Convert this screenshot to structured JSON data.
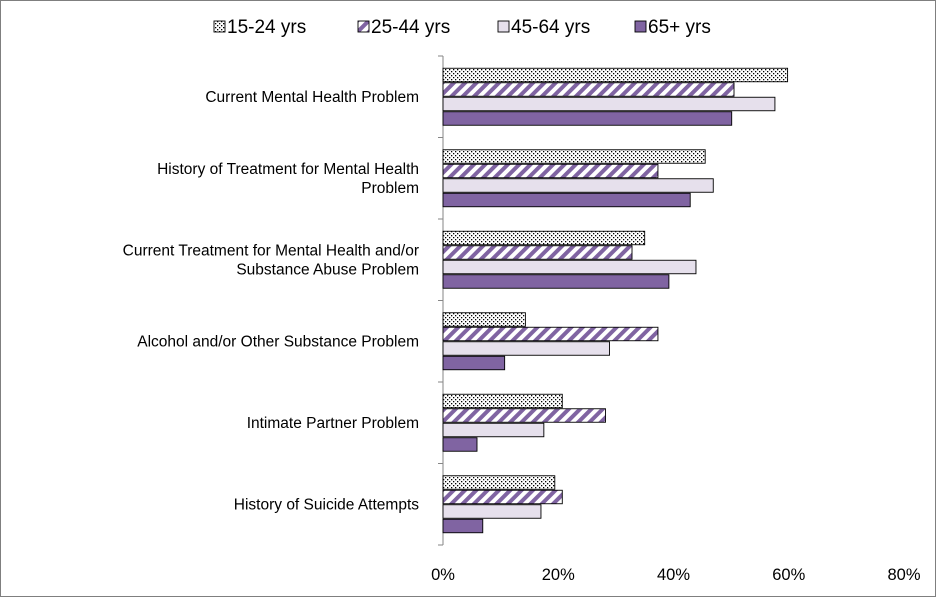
{
  "chart_data": {
    "type": "bar",
    "orientation": "horizontal",
    "title": "",
    "xlabel": "",
    "ylabel": "",
    "xlim": [
      0,
      80
    ],
    "x_ticks": [
      "0%",
      "20%",
      "40%",
      "60%",
      "80%"
    ],
    "grid": false,
    "legend_position": "top",
    "categories": [
      [
        "Current Mental Health Problem"
      ],
      [
        "History of Treatment for Mental Health",
        "Problem"
      ],
      [
        "Current Treatment for Mental Health and/or",
        "Substance Abuse Problem"
      ],
      [
        "Alcohol and/or Other Substance Problem"
      ],
      [
        "Intimate Partner Problem"
      ],
      [
        "History of Suicide Attempts"
      ]
    ],
    "series": [
      {
        "name": "15-24 yrs",
        "pattern": "dots",
        "color": "#ffffff",
        "values": [
          59.8,
          45.5,
          35.0,
          14.3,
          20.7,
          19.4
        ]
      },
      {
        "name": "25-44 yrs",
        "pattern": "diagonal-stripes",
        "color": "#8064a2",
        "values": [
          50.5,
          37.3,
          32.8,
          37.3,
          28.2,
          20.7
        ]
      },
      {
        "name": "45-64 yrs",
        "pattern": "solid",
        "color": "#e6e0ec",
        "values": [
          57.6,
          46.9,
          43.9,
          28.9,
          17.5,
          17.0
        ]
      },
      {
        "name": "65+ yrs",
        "pattern": "solid",
        "color": "#8064a2",
        "values": [
          50.1,
          42.9,
          39.2,
          10.7,
          5.9,
          6.9
        ]
      }
    ]
  }
}
